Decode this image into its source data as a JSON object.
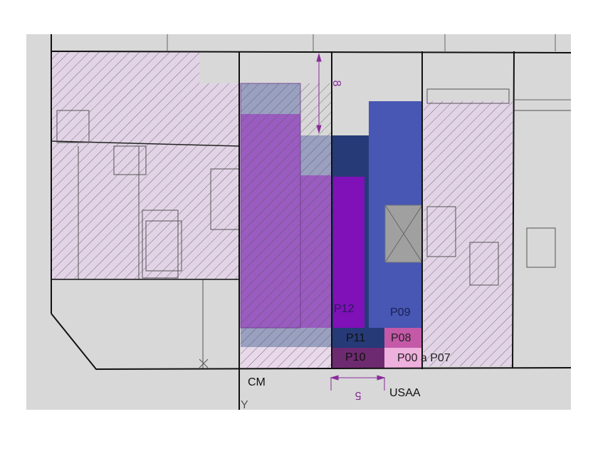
{
  "labels": {
    "p12": "P12",
    "p09": "P09",
    "p11": "P11",
    "p08": "P08",
    "p10": "P10",
    "p00_p07": "P00 a P07",
    "cm": "CM",
    "usaa": "USAA",
    "y_mark": "Y",
    "dim_vertical": "8",
    "dim_horizontal": "5"
  },
  "colors": {
    "background": "#d8d8d8",
    "hatched_parcel": "#e2d4e6",
    "purple_block": "#9a5cc0",
    "grayblue_block": "#9aa0c0",
    "navy_p11": "#263a78",
    "violet_p12": "#8010b8",
    "blue_p09": "#4757b3",
    "magenta_p08": "#c459a8",
    "plum_p10": "#6e2a70",
    "pink_p00_p07": "#eeb0dc",
    "dimension": "#8a2a9a"
  }
}
